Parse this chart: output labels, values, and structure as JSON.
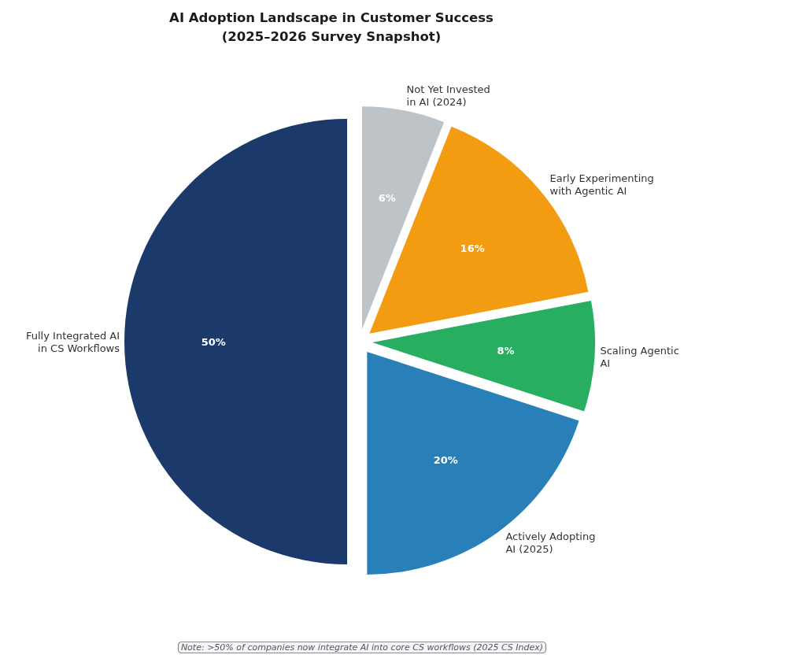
{
  "chart_data": {
    "type": "pie",
    "title": "AI Adoption Landscape in Customer Success\n(2025–2026 Survey Snapshot)",
    "categories": [
      "Fully Integrated AI\nin CS Workflows",
      "Actively Adopting\nAI (2025)",
      "Scaling Agentic\nAI",
      "Early Experimenting\nwith Agentic AI",
      "Not Yet Invested\nin AI (2024)"
    ],
    "values": [
      50,
      20,
      8,
      16,
      6
    ],
    "value_labels": [
      "50%",
      "20%",
      "8%",
      "16%",
      "6%"
    ],
    "colors": [
      "#1b3a6b",
      "#2980b9",
      "#27ae60",
      "#f39c12",
      "#bdc3c7"
    ],
    "annotations": [
      "Note: >50% of companies now integrate AI into core CS workflows (2025 CS Index)"
    ]
  }
}
